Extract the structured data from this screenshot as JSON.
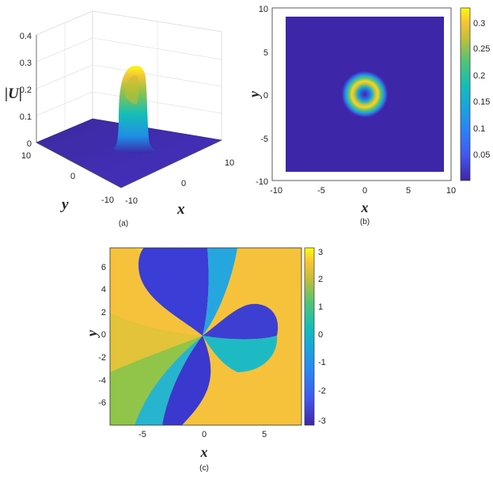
{
  "chart_data": [
    {
      "id": "a",
      "type": "surface3d",
      "caption": "(a)",
      "xlabel": "x",
      "ylabel": "y",
      "zlabel": "|U|",
      "xlim": [
        -10,
        10
      ],
      "ylim": [
        -10,
        10
      ],
      "zlim": [
        0,
        0.4
      ],
      "xticks": [
        "-10",
        "0",
        "10"
      ],
      "yticks": [
        "10",
        "0",
        "-10"
      ],
      "zticks": [
        "0",
        "0.1",
        "0.2",
        "0.3",
        "0.4"
      ],
      "peak_value": 0.31,
      "colormap": "parula"
    },
    {
      "id": "b",
      "type": "heatmap",
      "caption": "(b)",
      "xlabel": "x",
      "ylabel": "y",
      "xlim": [
        -10,
        10
      ],
      "ylim": [
        -10,
        10
      ],
      "xticks": [
        "-10",
        "-5",
        "0",
        "5",
        "10"
      ],
      "yticks": [
        "10",
        "5",
        "0",
        "-5",
        "-10"
      ],
      "colorbar_ticks": [
        "0.3",
        "0.25",
        "0.2",
        "0.15",
        "0.1",
        "0.05"
      ],
      "colorbar_range": [
        0,
        0.32
      ],
      "ring_center": [
        0,
        0
      ],
      "ring_radius": 1.5,
      "ring_max": 0.31,
      "colormap": "parula"
    },
    {
      "id": "c",
      "type": "heatmap",
      "caption": "(c)",
      "xlabel": "x",
      "ylabel": "y",
      "xlim": [
        -8,
        8
      ],
      "ylim": [
        -7,
        7
      ],
      "xticks": [
        "-5",
        "0",
        "5"
      ],
      "yticks": [
        "6",
        "4",
        "2",
        "0",
        "-2",
        "-4",
        "-6"
      ],
      "colorbar_ticks": [
        "3",
        "2",
        "1",
        "0",
        "-1",
        "-2",
        "-3"
      ],
      "colorbar_range": [
        -3.14,
        3.14
      ],
      "vortex_charge": 3,
      "colormap": "parula"
    }
  ],
  "colors": {
    "parula_low": "#3e26a8",
    "parula_mid": "#13beb8",
    "parula_high": "#f9fb0e"
  }
}
